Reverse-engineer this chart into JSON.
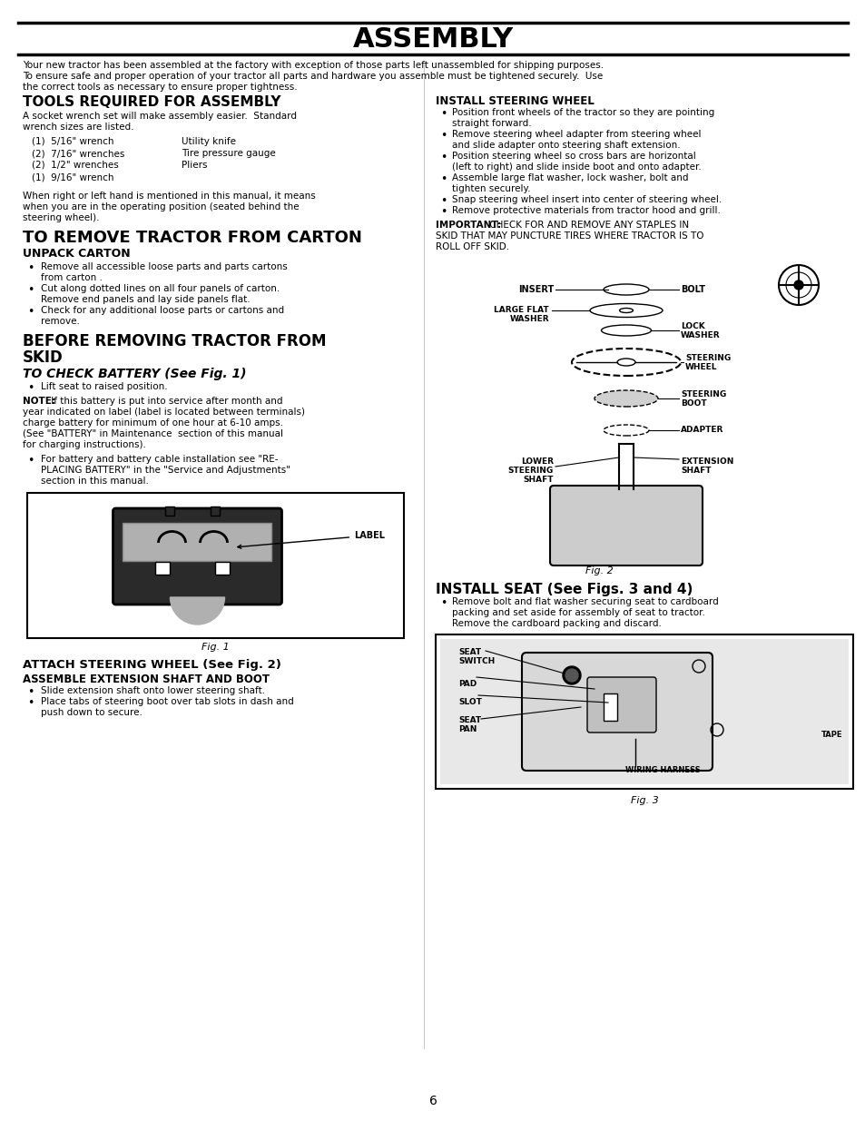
{
  "title": "ASSEMBLY",
  "background_color": "#ffffff",
  "text_color": "#000000",
  "page_number": "6",
  "intro_text": "Your new tractor has been assembled at the factory with exception of those parts left unassembled for shipping purposes. To ensure safe and proper operation of your tractor all parts and hardware you assemble must be tightened securely.  Use the correct tools as necessary to ensure proper tightness.",
  "section1_title": "TOOLS REQUIRED FOR ASSEMBLY",
  "section1_intro": "A socket wrench set will make assembly easier.  Standard\nwrench sizes are listed.",
  "tools_left": [
    "(1)  5/16\" wrench",
    "(2)  7/16\" wrenches",
    "(2)  1/2\" wrenches",
    "(1)  9/16\" wrench"
  ],
  "tools_right": [
    "Utility knife",
    "Tire pressure gauge",
    "Pliers",
    ""
  ],
  "hand_note": "When right or left hand is mentioned in this manual, it means when you are in the operating position (seated behind the steering wheel).",
  "section2_title": "TO REMOVE TRACTOR FROM CARTON",
  "unpack_title": "UNPACK CARTON",
  "unpack_bullets": [
    "Remove all accessible loose parts and parts cartons from carton .",
    "Cut along dotted lines on all four panels of carton.\nRemove end panels and lay side panels flat.",
    "Check for any additional loose parts or cartons and\nremove."
  ],
  "section3_title": "BEFORE REMOVING TRACTOR FROM\nSKID",
  "battery_title": "TO CHECK BATTERY (See Fig. 1)",
  "battery_bullet1": "Lift seat to raised position.",
  "battery_note": "NOTE: If this battery is put into service after month and year indicated on label (label is located between terminals) charge battery for minimum of one hour at 6-10 amps. (See \"BATTERY\" in Maintenance  section of this manual for charging instructions).",
  "battery_bullet2": "For battery and battery cable installation see \"RE-\nPLACING BATTERY\" in the \"Service and Adjustments\"\nsection in this manual.",
  "fig1_caption": "Fig. 1",
  "attach_title": "ATTACH STEERING WHEEL (See Fig. 2)",
  "ext_shaft_title": "ASSEMBLE EXTENSION SHAFT AND BOOT",
  "ext_shaft_bullets": [
    "Slide extension shaft onto lower steering shaft.",
    "Place tabs of steering boot over tab slots in dash and\npush down to secure."
  ],
  "right_col_title": "INSTALL STEERING WHEEL",
  "right_col_bullets": [
    "Position front wheels of the tractor so they are pointing\nstraight forward.",
    "Remove steering wheel adapter from steering wheel\nand slide adapter onto steering shaft extension.",
    "Position steering wheel so cross bars are horizontal\n(left to right) and slide inside boot and onto adapter.",
    "Assemble large flat washer, lock washer, bolt and\ntighten securely.",
    "Snap steering wheel insert into center of steering wheel.",
    "Remove protective materials from tractor hood and grill."
  ],
  "important_text": "IMPORTANT:  CHECK FOR AND REMOVE ANY STAPLES IN SKID THAT MAY PUNCTURE TIRES WHERE TRACTOR IS TO ROLL OFF SKID.",
  "fig2_caption": "Fig. 2",
  "install_seat_title": "INSTALL SEAT (See Figs. 3 and 4)",
  "install_seat_bullets": [
    "Remove bolt and flat washer securing seat to cardboard\npacking and set aside for assembly of seat to tractor.\nRemove the cardboard packing and discard."
  ],
  "fig3_caption": "Fig. 3"
}
